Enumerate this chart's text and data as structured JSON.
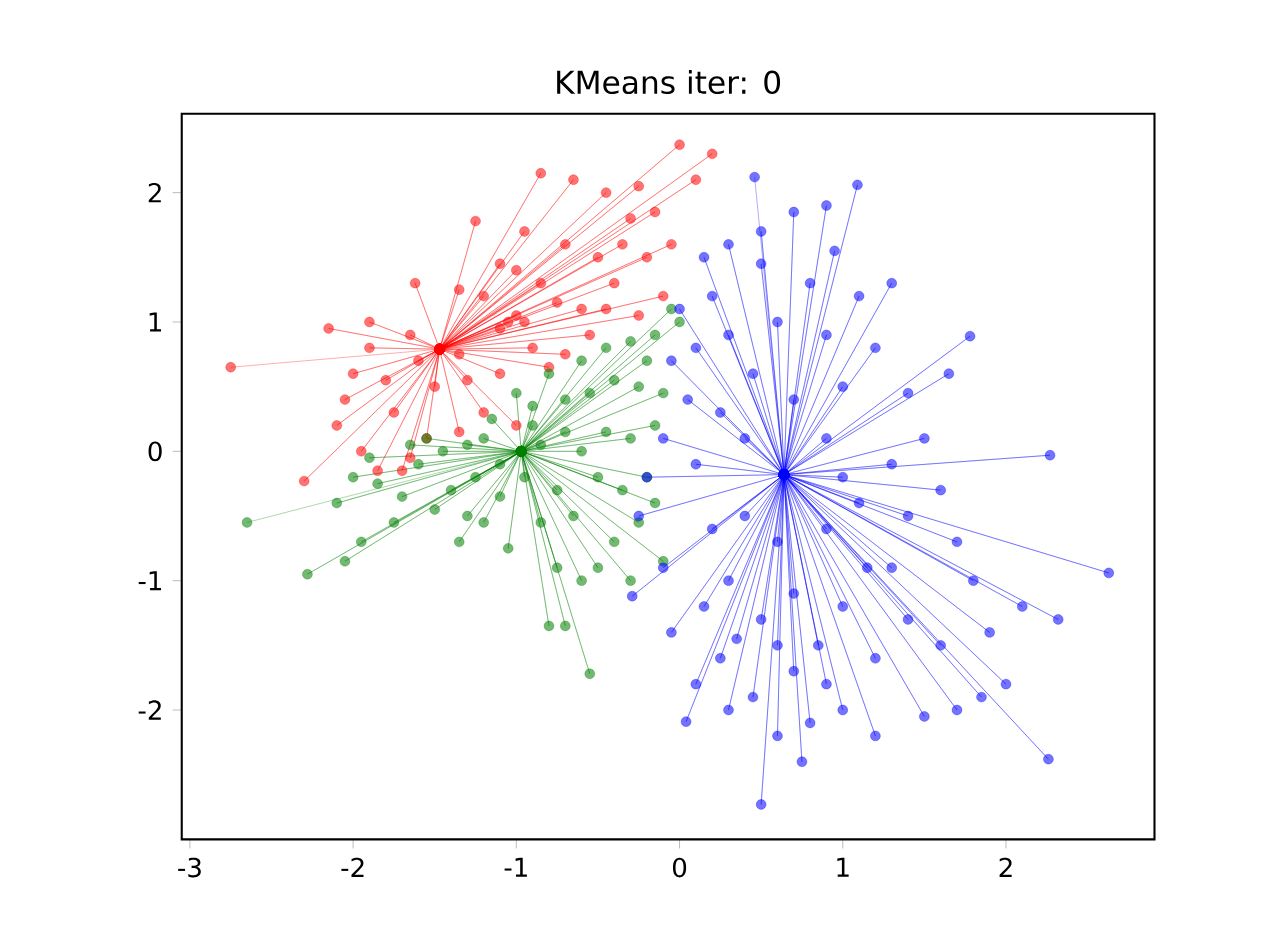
{
  "chart_data": {
    "type": "line",
    "title": "KMeans iter: 0",
    "xlim": [
      -3.05,
      2.91
    ],
    "ylim": [
      -3.0,
      2.61
    ],
    "xticks": [
      -3,
      -2,
      -1,
      0,
      1,
      2
    ],
    "yticks": [
      -2,
      -1,
      0,
      1,
      2
    ],
    "marker": "circle",
    "line_style": "solid",
    "grid": false,
    "series": [
      {
        "color": "#ff0000",
        "x": [
          -2.75,
          -1.47,
          -2.3,
          -1.47,
          -2.0,
          -1.47,
          -2.05,
          -1.47,
          -2.1,
          -1.47,
          -1.95,
          -1.47,
          -1.85,
          -1.47,
          -1.7,
          -1.47,
          -1.75,
          -1.47,
          -1.9,
          -1.47,
          -2.15,
          -1.47,
          -1.62,
          -1.47,
          -1.35,
          -1.47,
          -1.65,
          -1.47,
          -1.9,
          -1.47,
          -1.5,
          -1.47,
          -1.3,
          -1.47,
          -1.2,
          -1.47,
          -1.35,
          -1.47,
          -1.55,
          -1.47,
          -1.65,
          -1.47,
          -1.0,
          -1.47,
          -1.1,
          -1.47,
          -1.05,
          -1.47,
          -1.0,
          -1.47,
          -0.95,
          -1.47,
          -1.1,
          -1.47,
          -0.9,
          -1.47,
          -0.8,
          -1.47,
          -0.7,
          -1.47,
          -1.2,
          -1.47,
          -1.1,
          -1.47,
          -1.0,
          -1.47,
          -0.85,
          -1.47,
          -0.75,
          -1.47,
          -0.6,
          -1.47,
          -0.55,
          -1.47,
          -0.45,
          -1.47,
          -0.4,
          -1.47,
          -0.5,
          -1.47,
          -0.35,
          -1.47,
          -0.3,
          -1.47,
          -0.2,
          -1.47,
          -0.15,
          -1.47,
          -0.1,
          -1.47,
          -0.25,
          -1.47,
          -0.05,
          -1.47,
          0.1,
          -1.47,
          0.0,
          -1.47,
          0.2,
          -1.47,
          -0.85,
          -1.47,
          -0.65,
          -1.47,
          -0.45,
          -1.47,
          -0.25,
          -1.47,
          -1.25,
          -1.47,
          -0.95,
          -1.47,
          -0.7,
          -1.47,
          -1.35,
          -1.47,
          -1.8,
          -1.47,
          -1.6,
          -1.47
        ],
        "values": [
          0.65,
          0.79,
          -0.23,
          0.79,
          0.6,
          0.79,
          0.4,
          0.79,
          0.2,
          0.79,
          0.0,
          0.79,
          -0.15,
          0.79,
          -0.15,
          0.79,
          0.3,
          0.79,
          0.8,
          0.79,
          0.95,
          0.79,
          1.3,
          0.79,
          1.25,
          0.79,
          0.9,
          0.79,
          1.0,
          0.79,
          0.5,
          0.79,
          0.55,
          0.79,
          0.3,
          0.79,
          0.15,
          0.79,
          0.1,
          0.79,
          -0.05,
          0.79,
          0.2,
          0.79,
          0.6,
          0.79,
          1.0,
          0.79,
          1.05,
          0.79,
          1.0,
          0.79,
          0.95,
          0.79,
          0.8,
          0.79,
          0.65,
          0.79,
          0.75,
          0.79,
          1.2,
          0.79,
          1.45,
          0.79,
          1.4,
          0.79,
          1.3,
          0.79,
          1.15,
          0.79,
          1.1,
          0.79,
          0.9,
          0.79,
          1.1,
          0.79,
          1.3,
          0.79,
          1.5,
          0.79,
          1.6,
          0.79,
          1.8,
          0.79,
          1.5,
          0.79,
          1.85,
          0.79,
          1.2,
          0.79,
          1.05,
          0.79,
          1.6,
          0.79,
          2.1,
          0.79,
          2.37,
          0.79,
          2.3,
          0.79,
          2.15,
          0.79,
          2.1,
          0.79,
          2.0,
          0.79,
          2.05,
          0.79,
          1.78,
          0.79,
          1.7,
          0.79,
          1.6,
          0.79,
          0.75,
          0.79,
          0.55,
          0.79,
          0.7,
          0.79
        ]
      },
      {
        "color": "#008000",
        "x": [
          -2.65,
          -0.97,
          -2.28,
          -0.97,
          -2.05,
          -0.97,
          -1.95,
          -0.97,
          -2.1,
          -0.97,
          -2.0,
          -0.97,
          -1.85,
          -0.97,
          -1.9,
          -0.97,
          -1.75,
          -0.97,
          -1.7,
          -0.97,
          -1.6,
          -0.97,
          -1.5,
          -0.97,
          -1.55,
          -0.97,
          -1.4,
          -0.97,
          -1.35,
          -0.97,
          -1.3,
          -0.97,
          -1.25,
          -0.97,
          -1.2,
          -0.97,
          -1.15,
          -0.97,
          -1.1,
          -0.97,
          -1.05,
          -0.97,
          -1.0,
          -0.97,
          -0.95,
          -0.97,
          -0.9,
          -0.97,
          -0.85,
          -0.97,
          -0.8,
          -0.97,
          -0.7,
          -0.97,
          -0.55,
          -0.97,
          -0.75,
          -0.97,
          -0.6,
          -0.97,
          -0.5,
          -0.97,
          -0.3,
          -0.97,
          -0.4,
          -0.97,
          -0.25,
          -0.97,
          -0.1,
          -0.97,
          -0.2,
          -0.97,
          -0.15,
          -0.97,
          -0.35,
          -0.97,
          -0.5,
          -0.97,
          -0.6,
          -0.97,
          -0.7,
          -0.97,
          -0.45,
          -0.97,
          -0.3,
          -0.97,
          -0.15,
          -0.97,
          -0.1,
          -0.97,
          -0.25,
          -0.97,
          -0.4,
          -0.97,
          -0.55,
          -0.97,
          -0.7,
          -0.97,
          -0.8,
          -0.97,
          -0.6,
          -0.97,
          -0.45,
          -0.97,
          -0.3,
          -0.97,
          -0.15,
          -0.97,
          -0.05,
          -0.97,
          0.0,
          -0.97,
          -0.2,
          -0.97,
          -0.9,
          -0.97,
          -1.2,
          -0.97,
          -1.45,
          -0.97,
          -1.1,
          -0.97,
          -0.85,
          -0.97,
          -0.75,
          -0.97,
          -0.65,
          -0.97,
          -1.3,
          -0.97,
          -1.65,
          -0.97
        ],
        "values": [
          -0.55,
          0.0,
          -0.95,
          0.0,
          -0.85,
          0.0,
          -0.7,
          0.0,
          -0.4,
          0.0,
          -0.2,
          0.0,
          -0.25,
          0.0,
          -0.05,
          0.0,
          -0.55,
          0.0,
          -0.35,
          0.0,
          -0.1,
          0.0,
          -0.45,
          0.0,
          0.1,
          0.0,
          -0.3,
          0.0,
          -0.7,
          0.0,
          0.05,
          0.0,
          -0.2,
          0.0,
          -0.55,
          0.0,
          0.25,
          0.0,
          -0.35,
          0.0,
          -0.75,
          0.0,
          0.45,
          0.0,
          -0.2,
          0.0,
          0.2,
          0.0,
          -0.55,
          0.0,
          -1.35,
          0.0,
          -1.35,
          0.0,
          -1.72,
          0.0,
          -0.9,
          0.0,
          -1.0,
          0.0,
          -0.9,
          0.0,
          -1.0,
          0.0,
          -0.7,
          0.0,
          -0.55,
          0.0,
          -0.85,
          0.0,
          -0.2,
          0.0,
          -0.4,
          0.0,
          -0.3,
          0.0,
          -0.2,
          0.0,
          0.0,
          0.0,
          0.15,
          0.0,
          0.15,
          0.0,
          0.1,
          0.0,
          0.2,
          0.0,
          0.45,
          0.0,
          0.5,
          0.0,
          0.55,
          0.0,
          0.45,
          0.0,
          0.4,
          0.0,
          0.6,
          0.0,
          0.7,
          0.0,
          0.8,
          0.0,
          0.85,
          0.0,
          0.9,
          0.0,
          1.1,
          0.0,
          1.0,
          0.0,
          0.7,
          0.0,
          0.35,
          0.0,
          0.1,
          0.0,
          0.0,
          0.0,
          -0.1,
          0.0,
          0.05,
          0.0,
          -0.3,
          0.0,
          -0.5,
          0.0,
          -0.5,
          0.0,
          0.05,
          0.0
        ]
      },
      {
        "color": "#0000ff",
        "x": [
          0.46,
          0.64,
          1.09,
          0.64,
          0.9,
          0.64,
          0.7,
          0.64,
          0.5,
          0.64,
          0.3,
          0.64,
          0.15,
          0.64,
          0.2,
          0.64,
          0.0,
          0.64,
          -0.05,
          0.64,
          0.05,
          0.64,
          -0.1,
          0.64,
          -0.2,
          0.64,
          -0.25,
          0.64,
          -0.29,
          0.64,
          -0.1,
          0.64,
          -0.05,
          0.64,
          0.04,
          0.64,
          0.1,
          0.64,
          0.25,
          0.64,
          0.3,
          0.64,
          0.5,
          0.64,
          0.45,
          0.64,
          0.6,
          0.64,
          0.7,
          0.64,
          0.8,
          0.64,
          0.9,
          0.64,
          1.0,
          0.64,
          1.2,
          0.64,
          1.5,
          0.64,
          2.26,
          0.64,
          1.85,
          0.64,
          2.0,
          0.64,
          2.32,
          0.64,
          2.1,
          0.64,
          2.63,
          0.64,
          1.8,
          0.64,
          1.6,
          0.64,
          1.4,
          0.64,
          1.3,
          0.64,
          1.2,
          0.64,
          1.0,
          0.64,
          0.85,
          0.64,
          0.7,
          0.64,
          0.5,
          0.64,
          0.3,
          0.64,
          0.2,
          0.64,
          0.4,
          0.64,
          0.6,
          0.64,
          0.9,
          0.64,
          1.1,
          0.64,
          1.4,
          0.64,
          1.7,
          0.64,
          1.6,
          0.64,
          1.3,
          0.64,
          2.27,
          0.64,
          1.5,
          0.64,
          1.78,
          0.64,
          1.65,
          0.64,
          1.4,
          0.64,
          1.2,
          0.64,
          1.1,
          0.64,
          1.3,
          0.64,
          1.0,
          0.64,
          0.9,
          0.64,
          0.8,
          0.64,
          0.6,
          0.64,
          0.7,
          0.64,
          0.45,
          0.64,
          0.3,
          0.64,
          0.25,
          0.64,
          0.4,
          0.64,
          0.1,
          0.64,
          0.9,
          0.64,
          1.0,
          0.64,
          0.5,
          0.64,
          0.1,
          0.64,
          0.95,
          0.64,
          1.15,
          0.64,
          0.6,
          0.64,
          0.35,
          0.64,
          0.75,
          0.64,
          0.15,
          0.64,
          1.9,
          0.64,
          1.7,
          0.64
        ],
        "values": [
          2.12,
          -0.18,
          2.06,
          -0.18,
          1.9,
          -0.18,
          1.85,
          -0.18,
          1.7,
          -0.18,
          1.6,
          -0.18,
          1.5,
          -0.18,
          1.2,
          -0.18,
          1.1,
          -0.18,
          0.7,
          -0.18,
          0.4,
          -0.18,
          0.1,
          -0.18,
          -0.2,
          -0.18,
          -0.5,
          -0.18,
          -1.12,
          -0.18,
          -0.9,
          -0.18,
          -1.4,
          -0.18,
          -2.09,
          -0.18,
          -1.8,
          -0.18,
          -1.6,
          -0.18,
          -2.0,
          -0.18,
          -2.73,
          -0.18,
          -1.9,
          -0.18,
          -2.2,
          -0.18,
          -1.7,
          -0.18,
          -2.1,
          -0.18,
          -1.8,
          -0.18,
          -2.0,
          -0.18,
          -2.2,
          -0.18,
          -2.05,
          -0.18,
          -2.38,
          -0.18,
          -1.9,
          -0.18,
          -1.8,
          -0.18,
          -1.3,
          -0.18,
          -1.2,
          -0.18,
          -0.94,
          -0.18,
          -1.0,
          -0.18,
          -1.5,
          -0.18,
          -1.3,
          -0.18,
          -0.9,
          -0.18,
          -1.6,
          -0.18,
          -1.2,
          -0.18,
          -1.5,
          -0.18,
          -1.1,
          -0.18,
          -1.3,
          -0.18,
          -1.0,
          -0.18,
          -0.6,
          -0.18,
          -0.5,
          -0.18,
          -0.7,
          -0.18,
          -0.6,
          -0.18,
          -0.4,
          -0.18,
          -0.5,
          -0.18,
          -0.7,
          -0.18,
          -0.3,
          -0.18,
          -0.1,
          -0.18,
          -0.03,
          -0.18,
          0.1,
          -0.18,
          0.89,
          -0.18,
          0.6,
          -0.18,
          0.45,
          -0.18,
          0.8,
          -0.18,
          1.2,
          -0.18,
          1.3,
          -0.18,
          0.5,
          -0.18,
          0.9,
          -0.18,
          1.3,
          -0.18,
          1.0,
          -0.18,
          0.4,
          -0.18,
          0.6,
          -0.18,
          0.9,
          -0.18,
          0.3,
          -0.18,
          0.1,
          -0.18,
          -0.1,
          -0.18,
          0.1,
          -0.18,
          -0.2,
          -0.18,
          1.45,
          -0.18,
          0.8,
          -0.18,
          1.55,
          -0.18,
          -0.9,
          -0.18,
          -1.5,
          -0.18,
          -1.45,
          -0.18,
          -2.4,
          -0.18,
          -1.2,
          -0.18,
          -1.4,
          -0.18,
          -2.0,
          -0.18
        ]
      }
    ]
  }
}
